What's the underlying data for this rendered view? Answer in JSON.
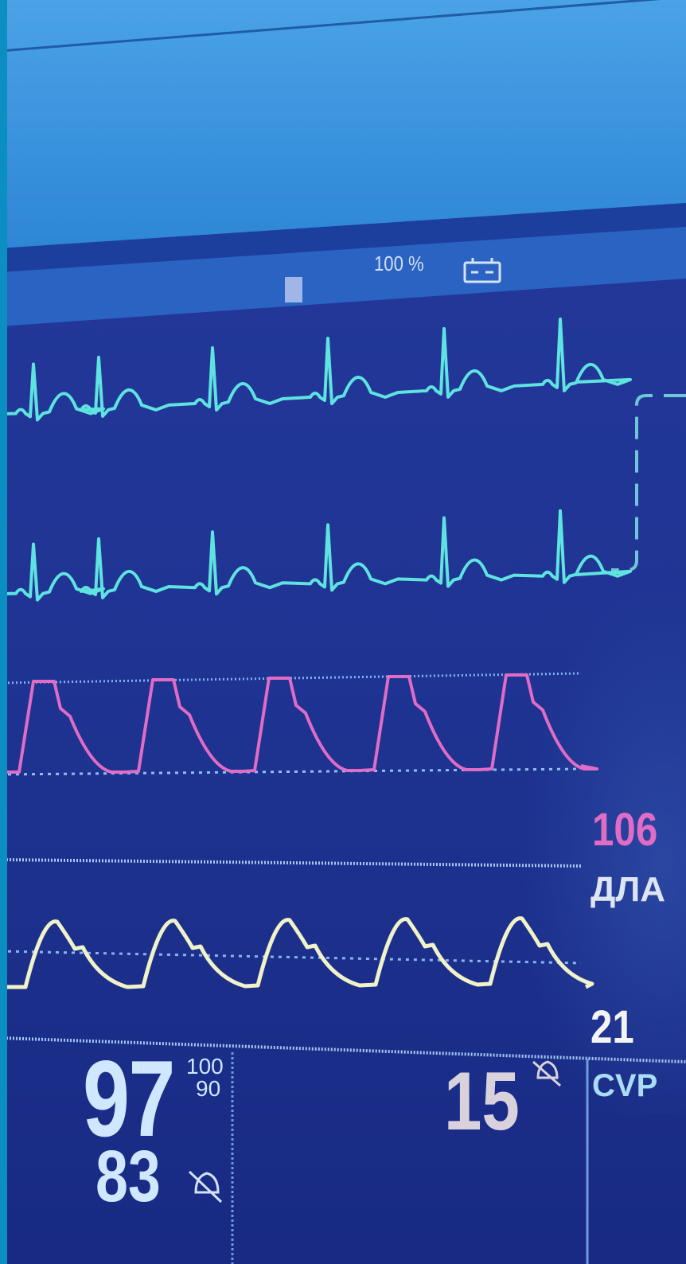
{
  "status": {
    "battery_percent": "100 %",
    "battery_icon": "battery-icon"
  },
  "pap": {
    "value_high": "106",
    "label": "ДЛА",
    "value_low": "21",
    "color": "#e06cc6"
  },
  "pulse_ox": {
    "main_value": "97",
    "alarm_high": "100",
    "alarm_low": "90",
    "secondary_value": "83",
    "alarm_icon": "bell-muted-icon"
  },
  "cvp": {
    "value": "15",
    "label": "CVP",
    "alarm_icon": "bell-muted-icon"
  },
  "colors": {
    "ecg": "#5fe3e0",
    "pressure": "#e06cc6",
    "pleth": "#f0f2c8",
    "screen": "#1c2f8c"
  }
}
